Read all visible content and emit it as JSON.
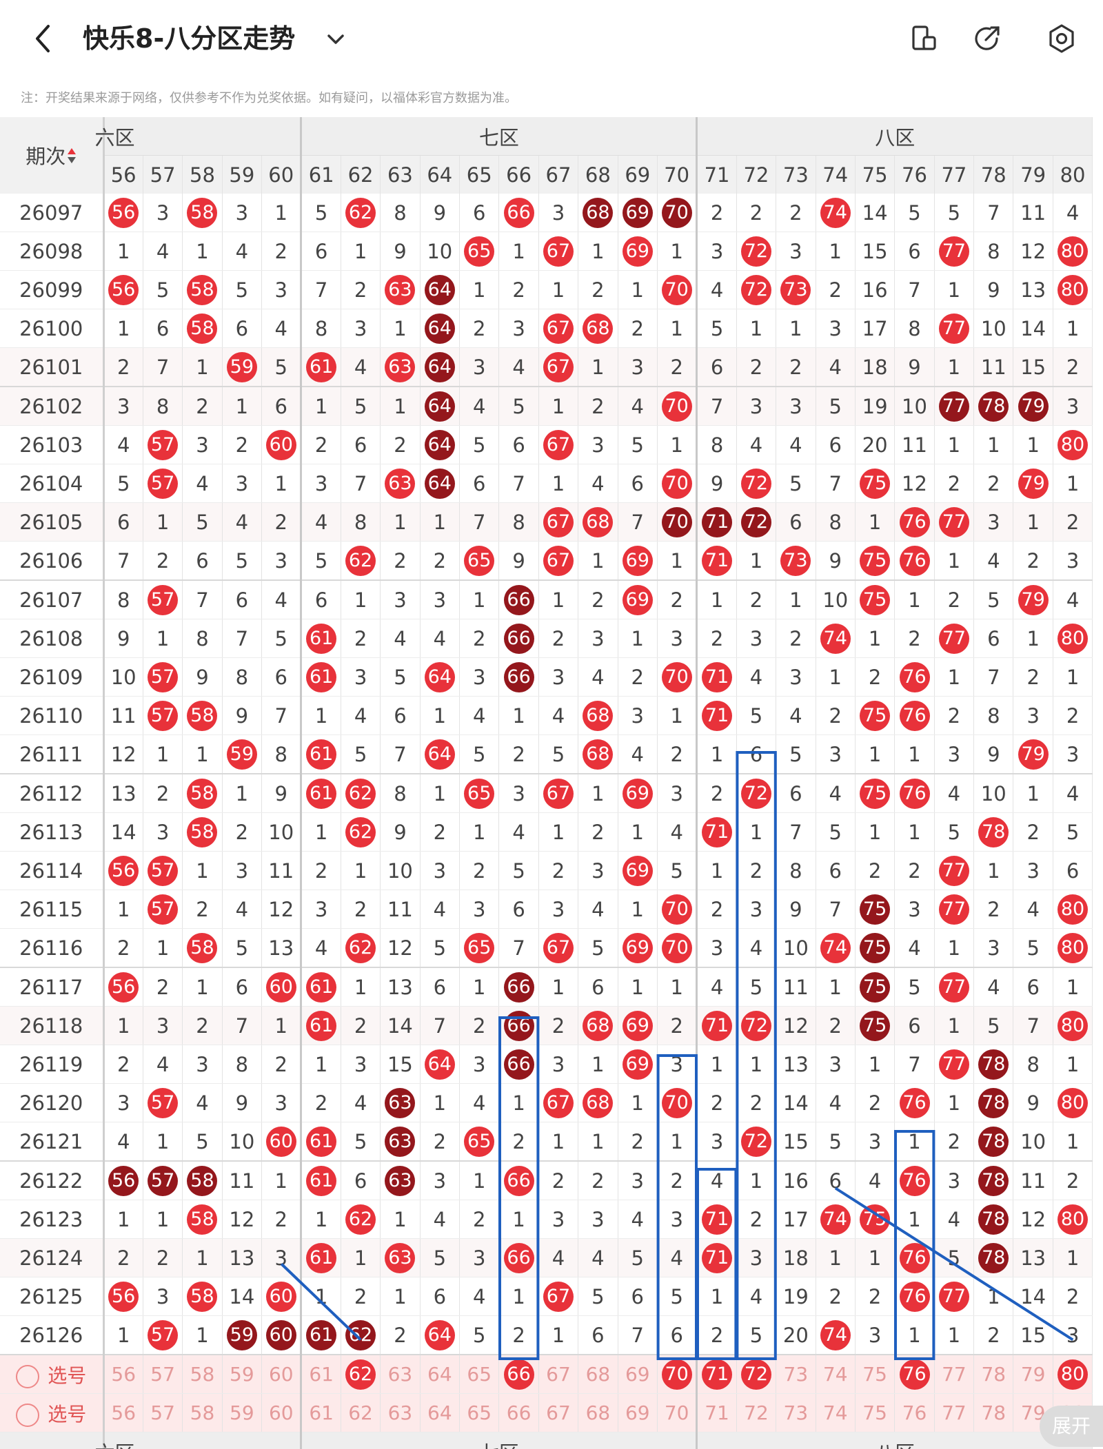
{
  "header": {
    "title": "快乐8-八分区走势",
    "note": "注：开奖结果来源于网络，仅供参考不作为兑奖依据。如有疑问，以福体彩官方数据为准。"
  },
  "table": {
    "period_header": "期次",
    "zones_top": [
      {
        "label": "六区",
        "visible_label": "六区",
        "cols": 5
      },
      {
        "label": "七区",
        "cols": 10
      },
      {
        "label": "八区",
        "cols": 10
      }
    ],
    "columns": [
      "56",
      "57",
      "58",
      "59",
      "60",
      "61",
      "62",
      "63",
      "64",
      "65",
      "66",
      "67",
      "68",
      "69",
      "70",
      "71",
      "72",
      "73",
      "74",
      "75",
      "76",
      "77",
      "78",
      "79",
      "80"
    ],
    "rows": [
      {
        "period": "26097",
        "cells": [
          "b56",
          "3",
          "b58",
          "3",
          "1",
          "5",
          "b62",
          "8",
          "9",
          "6",
          "b66",
          "3",
          "d68",
          "d69",
          "d70",
          "2",
          "2",
          "2",
          "b74",
          "14",
          "5",
          "5",
          "7",
          "11",
          "4"
        ]
      },
      {
        "period": "26098",
        "cells": [
          "1",
          "4",
          "1",
          "4",
          "2",
          "6",
          "1",
          "9",
          "10",
          "b65",
          "1",
          "b67",
          "1",
          "b69",
          "1",
          "3",
          "b72",
          "3",
          "1",
          "15",
          "6",
          "b77",
          "8",
          "12",
          "b80"
        ]
      },
      {
        "period": "26099",
        "cells": [
          "b56",
          "5",
          "b58",
          "5",
          "3",
          "7",
          "2",
          "b63",
          "d64",
          "1",
          "2",
          "1",
          "2",
          "1",
          "b70",
          "4",
          "b72",
          "b73",
          "2",
          "16",
          "7",
          "1",
          "9",
          "13",
          "b80"
        ]
      },
      {
        "period": "26100",
        "cells": [
          "1",
          "6",
          "b58",
          "6",
          "4",
          "8",
          "3",
          "1",
          "d64",
          "2",
          "3",
          "b67",
          "b68",
          "2",
          "1",
          "5",
          "1",
          "1",
          "3",
          "17",
          "8",
          "b77",
          "10",
          "14",
          "1"
        ]
      },
      {
        "period": "26101",
        "cells": [
          "2",
          "7",
          "1",
          "b59",
          "5",
          "b61",
          "4",
          "b63",
          "d64",
          "3",
          "4",
          "b67",
          "1",
          "3",
          "2",
          "6",
          "2",
          "2",
          "4",
          "18",
          "9",
          "1",
          "11",
          "15",
          "2"
        ]
      },
      {
        "period": "26102",
        "cells": [
          "3",
          "8",
          "2",
          "1",
          "6",
          "1",
          "5",
          "1",
          "d64",
          "4",
          "5",
          "1",
          "2",
          "4",
          "b70",
          "7",
          "3",
          "3",
          "5",
          "19",
          "10",
          "d77",
          "d78",
          "d79",
          "3"
        ]
      },
      {
        "period": "26103",
        "cells": [
          "4",
          "b57",
          "3",
          "2",
          "b60",
          "2",
          "6",
          "2",
          "d64",
          "5",
          "6",
          "b67",
          "3",
          "5",
          "1",
          "8",
          "4",
          "4",
          "6",
          "20",
          "11",
          "1",
          "1",
          "1",
          "b80"
        ]
      },
      {
        "period": "26104",
        "cells": [
          "5",
          "b57",
          "4",
          "3",
          "1",
          "3",
          "7",
          "b63",
          "d64",
          "6",
          "7",
          "1",
          "4",
          "6",
          "b70",
          "9",
          "b72",
          "5",
          "7",
          "b75",
          "12",
          "2",
          "2",
          "b79",
          "1"
        ]
      },
      {
        "period": "26105",
        "cells": [
          "6",
          "1",
          "5",
          "4",
          "2",
          "4",
          "8",
          "1",
          "1",
          "7",
          "8",
          "b67",
          "b68",
          "7",
          "d70",
          "d71",
          "d72",
          "6",
          "8",
          "1",
          "b76",
          "b77",
          "3",
          "1",
          "2"
        ]
      },
      {
        "period": "26106",
        "cells": [
          "7",
          "2",
          "6",
          "5",
          "3",
          "5",
          "b62",
          "2",
          "2",
          "b65",
          "9",
          "b67",
          "1",
          "b69",
          "1",
          "b71",
          "1",
          "b73",
          "9",
          "b75",
          "b76",
          "1",
          "4",
          "2",
          "3"
        ]
      },
      {
        "period": "26107",
        "cells": [
          "8",
          "b57",
          "7",
          "6",
          "4",
          "6",
          "1",
          "3",
          "3",
          "1",
          "d66",
          "1",
          "2",
          "b69",
          "2",
          "1",
          "2",
          "1",
          "10",
          "b75",
          "1",
          "2",
          "5",
          "b79",
          "4"
        ]
      },
      {
        "period": "26108",
        "cells": [
          "9",
          "1",
          "8",
          "7",
          "5",
          "b61",
          "2",
          "4",
          "4",
          "2",
          "d66",
          "2",
          "3",
          "1",
          "3",
          "2",
          "3",
          "2",
          "b74",
          "1",
          "2",
          "b77",
          "6",
          "1",
          "b80"
        ]
      },
      {
        "period": "26109",
        "cells": [
          "10",
          "b57",
          "9",
          "8",
          "6",
          "b61",
          "3",
          "5",
          "b64",
          "3",
          "d66",
          "3",
          "4",
          "2",
          "b70",
          "b71",
          "4",
          "3",
          "1",
          "2",
          "b76",
          "1",
          "7",
          "2",
          "1"
        ]
      },
      {
        "period": "26110",
        "cells": [
          "11",
          "b57",
          "b58",
          "9",
          "7",
          "1",
          "4",
          "6",
          "1",
          "4",
          "1",
          "4",
          "b68",
          "3",
          "1",
          "b71",
          "5",
          "4",
          "2",
          "b75",
          "b76",
          "2",
          "8",
          "3",
          "2"
        ]
      },
      {
        "period": "26111",
        "cells": [
          "12",
          "1",
          "1",
          "b59",
          "8",
          "b61",
          "5",
          "7",
          "b64",
          "5",
          "2",
          "5",
          "b68",
          "4",
          "2",
          "1",
          "6",
          "5",
          "3",
          "1",
          "1",
          "3",
          "9",
          "b79",
          "3"
        ]
      },
      {
        "period": "26112",
        "cells": [
          "13",
          "2",
          "b58",
          "1",
          "9",
          "b61",
          "b62",
          "8",
          "1",
          "b65",
          "3",
          "b67",
          "1",
          "b69",
          "3",
          "2",
          "b72",
          "6",
          "4",
          "b75",
          "b76",
          "4",
          "10",
          "1",
          "4"
        ]
      },
      {
        "period": "26113",
        "cells": [
          "14",
          "3",
          "b58",
          "2",
          "10",
          "1",
          "b62",
          "9",
          "2",
          "1",
          "4",
          "1",
          "2",
          "1",
          "4",
          "b71",
          "1",
          "7",
          "5",
          "1",
          "1",
          "5",
          "b78",
          "2",
          "5"
        ]
      },
      {
        "period": "26114",
        "cells": [
          "b56",
          "b57",
          "1",
          "3",
          "11",
          "2",
          "1",
          "10",
          "3",
          "2",
          "5",
          "2",
          "3",
          "b69",
          "5",
          "1",
          "2",
          "8",
          "6",
          "2",
          "2",
          "b77",
          "1",
          "3",
          "6"
        ]
      },
      {
        "period": "26115",
        "cells": [
          "1",
          "b57",
          "2",
          "4",
          "12",
          "3",
          "2",
          "11",
          "4",
          "3",
          "6",
          "3",
          "4",
          "1",
          "b70",
          "2",
          "3",
          "9",
          "7",
          "d75",
          "3",
          "b77",
          "2",
          "4",
          "b80"
        ]
      },
      {
        "period": "26116",
        "cells": [
          "2",
          "1",
          "b58",
          "5",
          "13",
          "4",
          "b62",
          "12",
          "5",
          "b65",
          "7",
          "b67",
          "5",
          "b69",
          "b70",
          "3",
          "4",
          "10",
          "b74",
          "d75",
          "4",
          "1",
          "3",
          "5",
          "b80"
        ]
      },
      {
        "period": "26117",
        "cells": [
          "b56",
          "2",
          "1",
          "6",
          "b60",
          "b61",
          "1",
          "13",
          "6",
          "1",
          "d66",
          "1",
          "6",
          "1",
          "1",
          "4",
          "5",
          "11",
          "1",
          "d75",
          "5",
          "b77",
          "4",
          "6",
          "1"
        ]
      },
      {
        "period": "26118",
        "cells": [
          "1",
          "3",
          "2",
          "7",
          "1",
          "b61",
          "2",
          "14",
          "7",
          "2",
          "d66",
          "2",
          "b68",
          "b69",
          "2",
          "b71",
          "b72",
          "12",
          "2",
          "d75",
          "6",
          "1",
          "5",
          "7",
          "b80"
        ]
      },
      {
        "period": "26119",
        "cells": [
          "2",
          "4",
          "3",
          "8",
          "2",
          "1",
          "3",
          "15",
          "b64",
          "3",
          "d66",
          "3",
          "1",
          "b69",
          "3",
          "1",
          "1",
          "13",
          "3",
          "1",
          "7",
          "b77",
          "d78",
          "8",
          "1"
        ]
      },
      {
        "period": "26120",
        "cells": [
          "3",
          "b57",
          "4",
          "9",
          "3",
          "2",
          "4",
          "d63",
          "1",
          "4",
          "1",
          "b67",
          "b68",
          "1",
          "b70",
          "2",
          "2",
          "14",
          "4",
          "2",
          "b76",
          "1",
          "d78",
          "9",
          "b80"
        ]
      },
      {
        "period": "26121",
        "cells": [
          "4",
          "1",
          "5",
          "10",
          "b60",
          "b61",
          "5",
          "d63",
          "2",
          "b65",
          "2",
          "1",
          "1",
          "2",
          "1",
          "3",
          "b72",
          "15",
          "5",
          "3",
          "1",
          "2",
          "d78",
          "10",
          "1"
        ]
      },
      {
        "period": "26122",
        "cells": [
          "d56",
          "d57",
          "d58",
          "11",
          "1",
          "b61",
          "6",
          "d63",
          "3",
          "1",
          "b66",
          "2",
          "2",
          "3",
          "2",
          "4",
          "1",
          "16",
          "6",
          "4",
          "b76",
          "3",
          "d78",
          "11",
          "2"
        ]
      },
      {
        "period": "26123",
        "cells": [
          "1",
          "1",
          "b58",
          "12",
          "2",
          "1",
          "b62",
          "1",
          "4",
          "2",
          "1",
          "3",
          "3",
          "4",
          "3",
          "b71",
          "2",
          "17",
          "b74",
          "b75",
          "1",
          "4",
          "d78",
          "12",
          "b80"
        ]
      },
      {
        "period": "26124",
        "cells": [
          "2",
          "2",
          "1",
          "13",
          "3",
          "b61",
          "1",
          "b63",
          "5",
          "3",
          "b66",
          "4",
          "4",
          "5",
          "4",
          "b71",
          "3",
          "18",
          "1",
          "1",
          "b76",
          "5",
          "d78",
          "13",
          "1"
        ]
      },
      {
        "period": "26125",
        "cells": [
          "b56",
          "3",
          "b58",
          "14",
          "b60",
          "1",
          "2",
          "1",
          "6",
          "4",
          "1",
          "b67",
          "5",
          "6",
          "5",
          "1",
          "4",
          "19",
          "2",
          "2",
          "b76",
          "b77",
          "1",
          "14",
          "2"
        ]
      },
      {
        "period": "26126",
        "cells": [
          "1",
          "b57",
          "1",
          "d59",
          "d60",
          "d61",
          "d62",
          "2",
          "b64",
          "5",
          "2",
          "1",
          "6",
          "7",
          "6",
          "2",
          "5",
          "20",
          "b74",
          "3",
          "1",
          "1",
          "2",
          "15",
          "3"
        ]
      }
    ],
    "pick_rows": [
      {
        "label": "选号",
        "cells": [
          "56",
          "57",
          "58",
          "59",
          "60",
          "61",
          "b62",
          "63",
          "64",
          "65",
          "b66",
          "67",
          "68",
          "69",
          "b70",
          "b71",
          "b72",
          "73",
          "74",
          "75",
          "b76",
          "77",
          "78",
          "79",
          "b80"
        ]
      },
      {
        "label": "选号",
        "cells": [
          "56",
          "57",
          "58",
          "59",
          "60",
          "61",
          "62",
          "63",
          "64",
          "65",
          "66",
          "67",
          "68",
          "69",
          "70",
          "71",
          "72",
          "73",
          "74",
          "75",
          "76",
          "77",
          "78",
          "79",
          "80"
        ]
      }
    ],
    "zones_bottom": [
      {
        "label": "六区",
        "cols": 5
      },
      {
        "label": "七区",
        "cols": 10
      },
      {
        "label": "八区",
        "cols": 10
      }
    ]
  },
  "expand_label": "展开",
  "colors": {
    "ball": "#e8323a",
    "ball_dark": "#94171c",
    "box": "#1f5fbf",
    "line": "#1f5fbf"
  }
}
